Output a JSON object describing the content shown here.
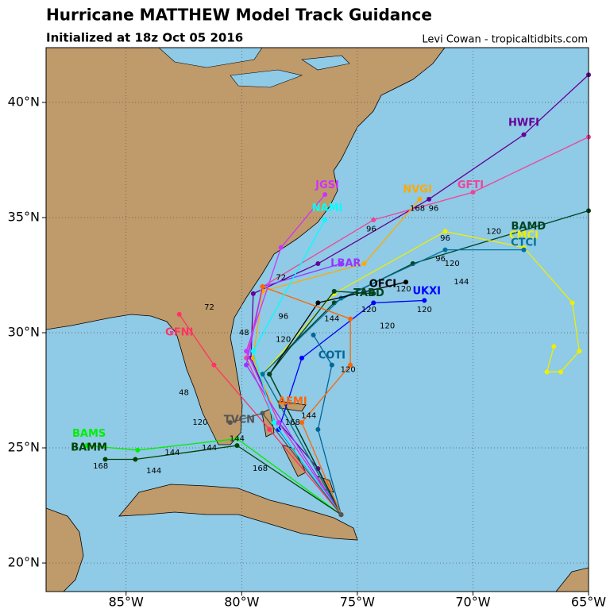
{
  "chart_data": {
    "type": "track-map",
    "title": "Hurricane MATTHEW Model Track Guidance",
    "subtitle": "Initialized at 18z Oct 05 2016",
    "credit": "Levi Cowan - tropicaltidbits.com",
    "xlim": [
      -88.46,
      -65
    ],
    "ylim": [
      18.76,
      42.38
    ],
    "grid": true,
    "xticks": [
      {
        "value": -85,
        "label": "85°W"
      },
      {
        "value": -80,
        "label": "80°W"
      },
      {
        "value": -75,
        "label": "75°W"
      },
      {
        "value": -70,
        "label": "70°W"
      },
      {
        "value": -65,
        "label": "65°W"
      }
    ],
    "yticks": [
      {
        "value": 20,
        "label": "20°N"
      },
      {
        "value": 25,
        "label": "25°N"
      },
      {
        "value": 30,
        "label": "30°N"
      },
      {
        "value": 35,
        "label": "35°N"
      },
      {
        "value": 40,
        "label": "40°N"
      }
    ],
    "series": [
      {
        "name": "HWFI",
        "color": "#660099",
        "label_lon": -67.8,
        "label_lat": 39.1,
        "lon": [
          -75.7,
          -76.7,
          -78.4,
          -79.6,
          -79.5,
          -76.7,
          -71.9,
          -67.8,
          -65.0
        ],
        "lat": [
          22.1,
          24.1,
          26.1,
          28.9,
          31.7,
          33.0,
          35.8,
          38.6,
          41.2
        ]
      },
      {
        "name": "GFTI",
        "color": "#ee4499",
        "label_lon": -70.1,
        "label_lat": 36.4,
        "lon": [
          -75.7,
          -78.4,
          -79.8,
          -79.1,
          -74.3,
          -70.0,
          -65.0
        ],
        "lat": [
          22.1,
          25.8,
          28.9,
          32.0,
          34.9,
          36.1,
          38.5
        ]
      },
      {
        "name": "NVGI",
        "color": "#ffaa00",
        "label_lon": -72.4,
        "label_lat": 36.2,
        "lon": [
          -75.7,
          -78.4,
          -79.5,
          -79.1,
          -74.7,
          -72.3
        ],
        "lat": [
          22.1,
          26.1,
          28.9,
          31.8,
          33.0,
          35.8
        ]
      },
      {
        "name": "BAMD",
        "color": "#004422",
        "label_lon": -67.6,
        "label_lat": 34.6,
        "lon": [
          -75.7,
          -79.1,
          -76.0,
          -72.6,
          -65.0
        ],
        "lat": [
          22.1,
          28.2,
          31.3,
          33.0,
          35.3
        ]
      },
      {
        "name": "CMCI",
        "color": "#eeee00",
        "label_lon": -67.8,
        "label_lat": 34.2,
        "lon": [
          -75.7,
          -79.1,
          -76.0,
          -71.2,
          -67.8,
          -65.7,
          -65.4,
          -66.2,
          -66.8,
          -66.5
        ],
        "lat": [
          22.1,
          28.2,
          31.7,
          34.4,
          33.7,
          31.3,
          29.2,
          28.3,
          28.3,
          29.4
        ]
      },
      {
        "name": "CTCI",
        "color": "#0070a0",
        "label_lon": -67.8,
        "label_lat": 33.9,
        "lon": [
          -75.7,
          -79.1,
          -75.7,
          -71.2,
          -67.8
        ],
        "lat": [
          22.1,
          28.2,
          31.5,
          33.6,
          33.6
        ]
      },
      {
        "name": "LBAR",
        "color": "#9933ff",
        "label_lon": -75.5,
        "label_lat": 33.0,
        "lon": [
          -75.7,
          -79.8,
          -79.1,
          -75.7
        ],
        "lat": [
          22.1,
          28.6,
          32.0,
          33.0
        ]
      },
      {
        "name": "OFCI",
        "color": "#000000",
        "label_lon": -73.9,
        "label_lat": 32.1,
        "lon": [
          -75.7,
          -78.8,
          -76.7,
          -72.9
        ],
        "lat": [
          22.1,
          28.2,
          31.3,
          32.2
        ]
      },
      {
        "name": "TABD",
        "color": "#004422",
        "label_lon": -74.5,
        "label_lat": 31.7,
        "lon": [
          -75.7,
          -78.8,
          -76.0,
          -74.3
        ],
        "lat": [
          22.1,
          28.2,
          31.8,
          31.7
        ]
      },
      {
        "name": "UKXI",
        "color": "#0000ff",
        "label_lon": -72.0,
        "label_lat": 31.8,
        "lon": [
          -75.7,
          -78.4,
          -77.4,
          -74.3,
          -72.1
        ],
        "lat": [
          22.1,
          25.8,
          28.9,
          31.3,
          31.4
        ]
      },
      {
        "name": "COTI",
        "color": "#006699",
        "label_lon": -76.1,
        "label_lat": 29.0,
        "lon": [
          -75.7,
          -76.7,
          -76.1,
          -76.9
        ],
        "lat": [
          22.1,
          25.8,
          28.6,
          29.9
        ]
      },
      {
        "name": "AEMI",
        "color": "#ff6600",
        "label_lon": -77.8,
        "label_lat": 27.0,
        "lon": [
          -75.7,
          -77.4,
          -75.3,
          -75.3,
          -79.1
        ],
        "lat": [
          22.1,
          26.1,
          28.6,
          30.6,
          32.0
        ]
      },
      {
        "name": "BAMS",
        "color": "#00ee00",
        "label_lon": -86.6,
        "label_lat": 25.6,
        "lon": [
          -75.7,
          -80.2,
          -84.5,
          -86.7
        ],
        "lat": [
          22.1,
          25.4,
          24.9,
          25.1
        ]
      },
      {
        "name": "BAMM",
        "color": "#004400",
        "label_lon": -86.6,
        "label_lat": 25.0,
        "lon": [
          -75.7,
          -80.2,
          -84.6,
          -85.9
        ],
        "lat": [
          22.1,
          25.1,
          24.5,
          24.5
        ]
      },
      {
        "name": "JGSI",
        "color": "#cc33ff",
        "label_lon": -76.3,
        "label_lat": 36.4,
        "lon": [
          -75.7,
          -78.4,
          -79.8,
          -78.3,
          -76.4
        ],
        "lat": [
          22.1,
          26.1,
          29.2,
          33.7,
          36.0
        ]
      },
      {
        "name": "NAMI",
        "color": "#00ffff",
        "label_lon": -76.3,
        "label_lat": 35.4,
        "lon": [
          -75.7,
          -78.6,
          -79.5,
          -76.4
        ],
        "lat": [
          22.1,
          26.1,
          29.2,
          34.9
        ]
      },
      {
        "name": "GFNI",
        "color": "#ff3366",
        "label_lon": -82.7,
        "label_lat": 30.0,
        "lon": [
          -75.7,
          -78.8,
          -81.2,
          -82.7
        ],
        "lat": [
          22.1,
          25.8,
          28.6,
          30.8
        ]
      },
      {
        "name": "TVCN",
        "color": "#555555",
        "label_lon": -80.1,
        "label_lat": 26.2,
        "lon": [
          -75.7,
          -79.1,
          -80.5
        ],
        "lat": [
          22.1,
          26.5,
          26.1
        ]
      }
    ],
    "hour_labels": [
      {
        "text": "168",
        "lon": -72.4,
        "lat": 35.4
      },
      {
        "text": "96",
        "lon": -71.7,
        "lat": 35.4
      },
      {
        "text": "96",
        "lon": -74.4,
        "lat": 34.5
      },
      {
        "text": "96",
        "lon": -71.2,
        "lat": 34.1
      },
      {
        "text": "120",
        "lon": -69.1,
        "lat": 34.4
      },
      {
        "text": "96",
        "lon": -71.4,
        "lat": 33.2
      },
      {
        "text": "120",
        "lon": -70.9,
        "lat": 33.0
      },
      {
        "text": "144",
        "lon": -70.5,
        "lat": 32.2
      },
      {
        "text": "120",
        "lon": -73.0,
        "lat": 31.9
      },
      {
        "text": "120",
        "lon": -72.1,
        "lat": 31.0
      },
      {
        "text": "120",
        "lon": -73.7,
        "lat": 30.3
      },
      {
        "text": "120",
        "lon": -74.5,
        "lat": 31.0
      },
      {
        "text": "144",
        "lon": -76.1,
        "lat": 30.6
      },
      {
        "text": "120",
        "lon": -75.4,
        "lat": 28.4
      },
      {
        "text": "120",
        "lon": -78.2,
        "lat": 29.7
      },
      {
        "text": "96",
        "lon": -78.2,
        "lat": 30.7
      },
      {
        "text": "72",
        "lon": -78.3,
        "lat": 32.4
      },
      {
        "text": "72",
        "lon": -81.4,
        "lat": 31.1
      },
      {
        "text": "48",
        "lon": -79.9,
        "lat": 30.0
      },
      {
        "text": "48",
        "lon": -82.5,
        "lat": 27.4
      },
      {
        "text": "144",
        "lon": -81.4,
        "lat": 25.0
      },
      {
        "text": "144",
        "lon": -80.2,
        "lat": 25.4
      },
      {
        "text": "168",
        "lon": -79.2,
        "lat": 24.1
      },
      {
        "text": "144",
        "lon": -83.8,
        "lat": 24.0
      },
      {
        "text": "168",
        "lon": -86.1,
        "lat": 24.2
      },
      {
        "text": "144",
        "lon": -83.0,
        "lat": 24.8
      },
      {
        "text": "120",
        "lon": -81.8,
        "lat": 26.1
      },
      {
        "text": "144",
        "lon": -77.1,
        "lat": 26.4
      },
      {
        "text": "168",
        "lon": -77.8,
        "lat": 26.1
      }
    ]
  }
}
